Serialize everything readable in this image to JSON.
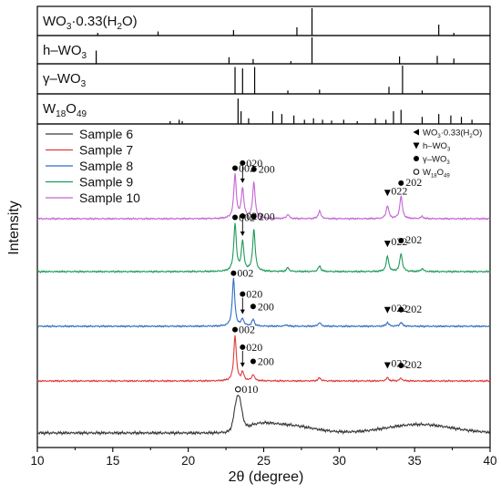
{
  "chart_data": {
    "type": "line",
    "xlabel": "2θ (degree)",
    "ylabel": "Intensity",
    "xlim": [
      10,
      40
    ],
    "x_ticks": [
      10,
      15,
      20,
      25,
      30,
      35,
      40
    ],
    "grid": false,
    "legend": {
      "placement": "top-left",
      "entries": [
        "Sample 6",
        "Sample 7",
        "Sample 8",
        "Sample 9",
        "Sample 10"
      ]
    },
    "marker_legend": {
      "placement": "top-right",
      "entries": [
        {
          "marker": "left-triangle",
          "label": "WO3·0.33(H2O)"
        },
        {
          "marker": "down-triangle",
          "label": "h–WO3"
        },
        {
          "marker": "filled-circle",
          "label": "γ–WO3"
        },
        {
          "marker": "open-circle",
          "label": "W18O49"
        }
      ]
    },
    "reference_panels": [
      {
        "label": "WO3·0.33(H2O)",
        "peaks": [
          [
            14.0,
            0.1
          ],
          [
            18.0,
            0.15
          ],
          [
            23.0,
            0.2
          ],
          [
            27.2,
            0.3
          ],
          [
            28.2,
            1.0
          ],
          [
            36.6,
            0.4
          ],
          [
            37.6,
            0.1
          ]
        ]
      },
      {
        "label": "h–WO3",
        "peaks": [
          [
            13.9,
            0.5
          ],
          [
            22.7,
            0.25
          ],
          [
            24.3,
            0.18
          ],
          [
            26.8,
            0.1
          ],
          [
            28.2,
            1.0
          ],
          [
            34.0,
            0.28
          ],
          [
            36.5,
            0.3
          ],
          [
            37.6,
            0.2
          ]
        ]
      },
      {
        "label": "γ–WO3",
        "peaks": [
          [
            23.1,
            0.95
          ],
          [
            23.6,
            0.9
          ],
          [
            24.4,
            0.95
          ],
          [
            26.6,
            0.12
          ],
          [
            28.7,
            0.15
          ],
          [
            33.3,
            0.25
          ],
          [
            34.2,
            1.0
          ],
          [
            35.5,
            0.12
          ]
        ]
      },
      {
        "label": "W18O49",
        "peaks": [
          [
            18.8,
            0.1
          ],
          [
            19.4,
            0.15
          ],
          [
            19.6,
            0.1
          ],
          [
            23.3,
            0.9
          ],
          [
            23.5,
            0.45
          ],
          [
            24.0,
            0.2
          ],
          [
            25.6,
            0.45
          ],
          [
            26.2,
            0.35
          ],
          [
            27.0,
            0.3
          ],
          [
            27.7,
            0.15
          ],
          [
            28.3,
            0.2
          ],
          [
            28.9,
            0.15
          ],
          [
            29.5,
            0.12
          ],
          [
            30.3,
            0.15
          ],
          [
            31.2,
            0.1
          ],
          [
            32.4,
            0.2
          ],
          [
            33.1,
            0.15
          ],
          [
            33.6,
            0.45
          ],
          [
            34.1,
            0.5
          ],
          [
            35.5,
            0.25
          ],
          [
            36.6,
            0.35
          ],
          [
            37.4,
            0.3
          ],
          [
            38.1,
            0.25
          ],
          [
            38.8,
            0.15
          ]
        ]
      }
    ],
    "series": [
      {
        "name": "Sample 6",
        "color": "#3a3a3a",
        "peaks": [],
        "broad": [
          {
            "x": 23.3,
            "h": 0.45,
            "w": 0.32
          },
          {
            "x": 24.6,
            "h": 0.07,
            "w": 1.3
          },
          {
            "x": 26.5,
            "h": 0.1,
            "w": 2.4
          },
          {
            "x": 35.3,
            "h": 0.11,
            "w": 3.0
          }
        ],
        "annotations": [
          {
            "x": 23.3,
            "marker": "open-circle",
            "label": "010"
          }
        ]
      },
      {
        "name": "Sample 7",
        "color": "#e03b3b",
        "peaks": [
          {
            "x": 23.1,
            "h": 1.0
          },
          {
            "x": 23.6,
            "h": 0.18
          },
          {
            "x": 24.3,
            "h": 0.14
          },
          {
            "x": 28.7,
            "h": 0.07
          },
          {
            "x": 33.2,
            "h": 0.07
          },
          {
            "x": 34.1,
            "h": 0.06
          }
        ],
        "broad": [],
        "annotations": [
          {
            "x": 23.1,
            "marker": "filled-circle",
            "label": "002"
          },
          {
            "x": 23.6,
            "marker": "filled-circle",
            "label": "020",
            "arrow": true
          },
          {
            "x": 24.3,
            "marker": "filled-circle",
            "label": "200"
          },
          {
            "x": 33.2,
            "marker": "down-triangle",
            "label": "022"
          },
          {
            "x": 34.1,
            "marker": "filled-circle",
            "label": "202"
          }
        ]
      },
      {
        "name": "Sample 8",
        "color": "#2f6ec4",
        "peaks": [
          {
            "x": 23.0,
            "h": 1.0
          },
          {
            "x": 23.6,
            "h": 0.15
          },
          {
            "x": 24.3,
            "h": 0.14
          },
          {
            "x": 26.5,
            "h": 0.03
          },
          {
            "x": 28.7,
            "h": 0.08
          },
          {
            "x": 33.2,
            "h": 0.08
          },
          {
            "x": 34.1,
            "h": 0.08
          }
        ],
        "broad": [],
        "annotations": [
          {
            "x": 23.0,
            "marker": "filled-circle",
            "label": "002"
          },
          {
            "x": 23.6,
            "marker": "filled-circle",
            "label": "020",
            "arrow": true
          },
          {
            "x": 24.3,
            "marker": "filled-circle",
            "label": "200"
          },
          {
            "x": 33.2,
            "marker": "down-triangle",
            "label": "022"
          },
          {
            "x": 34.1,
            "marker": "filled-circle",
            "label": "202"
          }
        ]
      },
      {
        "name": "Sample 9",
        "color": "#1e9a5a",
        "peaks": [
          {
            "x": 23.1,
            "h": 1.0
          },
          {
            "x": 23.6,
            "h": 0.62
          },
          {
            "x": 24.35,
            "h": 0.88
          },
          {
            "x": 26.6,
            "h": 0.08
          },
          {
            "x": 28.7,
            "h": 0.12
          },
          {
            "x": 33.2,
            "h": 0.32
          },
          {
            "x": 34.1,
            "h": 0.38
          },
          {
            "x": 35.5,
            "h": 0.06
          }
        ],
        "broad": [],
        "annotations": [
          {
            "x": 23.1,
            "marker": "filled-circle",
            "label": "002"
          },
          {
            "x": 23.6,
            "marker": "filled-circle",
            "label": "020",
            "arrow": true
          },
          {
            "x": 24.35,
            "marker": "filled-circle",
            "label": "200"
          },
          {
            "x": 33.2,
            "marker": "down-triangle",
            "label": "022"
          },
          {
            "x": 34.1,
            "marker": "filled-circle",
            "label": "202"
          }
        ]
      },
      {
        "name": "Sample 10",
        "color": "#c464d4",
        "peaks": [
          {
            "x": 23.1,
            "h": 1.0
          },
          {
            "x": 23.6,
            "h": 0.68
          },
          {
            "x": 24.35,
            "h": 0.82
          },
          {
            "x": 26.6,
            "h": 0.1
          },
          {
            "x": 28.7,
            "h": 0.18
          },
          {
            "x": 33.2,
            "h": 0.3
          },
          {
            "x": 34.1,
            "h": 0.52
          },
          {
            "x": 35.5,
            "h": 0.05
          }
        ],
        "broad": [],
        "annotations": [
          {
            "x": 23.1,
            "marker": "filled-circle",
            "label": "002"
          },
          {
            "x": 23.6,
            "marker": "filled-circle",
            "label": "020",
            "arrow": true
          },
          {
            "x": 24.35,
            "marker": "filled-circle",
            "label": "200"
          },
          {
            "x": 33.2,
            "marker": "down-triangle",
            "label": "022"
          },
          {
            "x": 34.1,
            "marker": "filled-circle",
            "label": "202"
          }
        ]
      }
    ]
  }
}
